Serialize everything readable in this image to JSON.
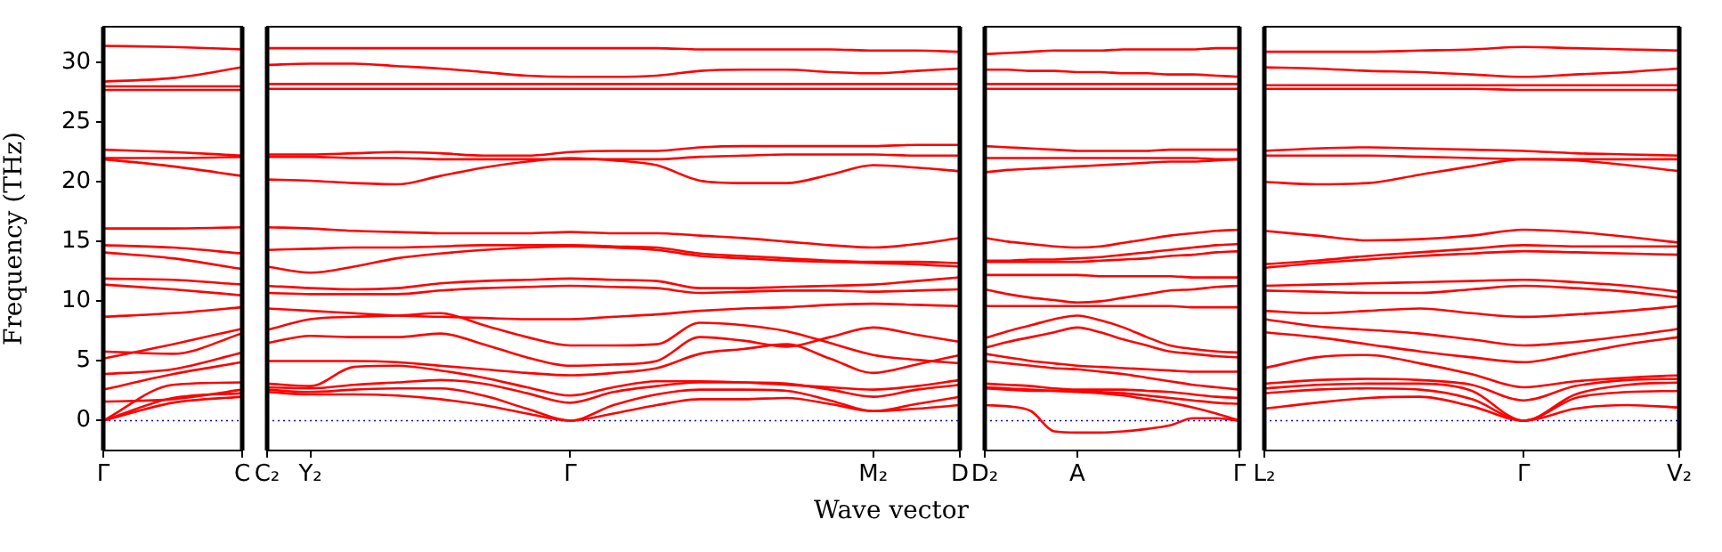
{
  "chart_data": [
    {
      "type": "line",
      "ylabel": "Frequency (THz)",
      "marker": "none",
      "categories": [
        "Γ",
        null,
        "C"
      ],
      "ylim": [
        -2.5,
        33
      ],
      "yticks": [
        0,
        5,
        10,
        15,
        20,
        25,
        30
      ],
      "ref_lines": [
        {
          "axis": "y",
          "value": 0,
          "color": "#0000ff",
          "line_style": "dotted"
        }
      ],
      "series": [
        {
          "color": "#ff0000",
          "values": [
            31.4,
            31.3,
            31.1
          ]
        },
        {
          "color": "#ff0000",
          "values": [
            28.4,
            28.7,
            29.6
          ]
        },
        {
          "color": "#ff0000",
          "values": [
            28.0,
            28.0,
            28.0
          ]
        },
        {
          "color": "#ff0000",
          "values": [
            27.7,
            27.7,
            27.7
          ]
        },
        {
          "color": "#ff0000",
          "values": [
            22.7,
            22.5,
            22.2
          ]
        },
        {
          "color": "#ff0000",
          "values": [
            22.0,
            22.0,
            22.1
          ]
        },
        {
          "color": "#ff0000",
          "values": [
            21.9,
            21.3,
            20.5
          ]
        },
        {
          "color": "#ff0000",
          "values": [
            16.1,
            16.1,
            16.2
          ]
        },
        {
          "color": "#ff0000",
          "values": [
            14.7,
            14.5,
            14.0
          ]
        },
        {
          "color": "#ff0000",
          "values": [
            14.1,
            13.6,
            12.7
          ]
        },
        {
          "color": "#ff0000",
          "values": [
            11.9,
            11.8,
            11.4
          ]
        },
        {
          "color": "#ff0000",
          "values": [
            11.4,
            11.0,
            10.5
          ]
        },
        {
          "color": "#ff0000",
          "values": [
            8.7,
            9.0,
            9.5
          ]
        },
        {
          "color": "#ff0000",
          "values": [
            5.8,
            5.6,
            7.3
          ]
        },
        {
          "color": "#ff0000",
          "values": [
            5.2,
            6.4,
            7.7
          ]
        },
        {
          "color": "#ff0000",
          "values": [
            3.9,
            4.3,
            5.7
          ]
        },
        {
          "color": "#ff0000",
          "values": [
            2.6,
            3.9,
            4.9
          ]
        },
        {
          "color": "#ff0000",
          "values": [
            1.6,
            1.8,
            2.6
          ]
        },
        {
          "color": "#ff0000",
          "values": [
            0,
            3.0,
            3.2
          ]
        },
        {
          "color": "#ff0000",
          "values": [
            0,
            1.9,
            2.3
          ]
        },
        {
          "color": "#ff0000",
          "values": [
            0,
            1.5,
            2.0
          ]
        }
      ]
    },
    {
      "type": "line",
      "xlabel": "Wave vector",
      "marker": "none",
      "tick_labels": "x",
      "categories": [
        "C₂",
        "Y₂",
        null,
        null,
        null,
        null,
        null,
        "Γ",
        null,
        null,
        null,
        null,
        null,
        null,
        "M₂",
        null,
        "D"
      ],
      "ylim": [
        -2.5,
        33
      ],
      "yticks": [
        0,
        5,
        10,
        15,
        20,
        25,
        30
      ],
      "ref_lines": [
        {
          "axis": "y",
          "value": 0,
          "color": "#0000ff",
          "line_style": "dotted"
        }
      ],
      "series": [
        {
          "color": "#ff0000",
          "values": [
            31.2,
            31.2,
            31.2,
            31.2,
            31.2,
            31.2,
            31.2,
            31.2,
            31.2,
            31.2,
            31.1,
            31.1,
            31.1,
            31.1,
            31.0,
            31.0,
            30.9
          ]
        },
        {
          "color": "#ff0000",
          "values": [
            29.8,
            29.9,
            29.9,
            29.7,
            29.5,
            29.2,
            28.9,
            28.8,
            28.8,
            28.9,
            29.3,
            29.4,
            29.4,
            29.2,
            29.1,
            29.3,
            29.5
          ]
        },
        {
          "color": "#ff0000",
          "values": [
            28.2,
            28.2,
            28.2,
            28.2,
            28.2,
            28.2,
            28.2,
            28.2,
            28.2,
            28.2,
            28.2,
            28.2,
            28.2,
            28.2,
            28.2,
            28.2,
            28.2
          ]
        },
        {
          "color": "#ff0000",
          "values": [
            27.8,
            27.8,
            27.8,
            27.8,
            27.8,
            27.8,
            27.8,
            27.8,
            27.8,
            27.8,
            27.8,
            27.8,
            27.8,
            27.8,
            27.8,
            27.8,
            27.8
          ]
        },
        {
          "color": "#ff0000",
          "values": [
            22.3,
            22.3,
            22.4,
            22.5,
            22.4,
            22.2,
            22.2,
            22.5,
            22.6,
            22.6,
            22.9,
            23.0,
            23.0,
            23.0,
            23.0,
            23.1,
            23.1
          ]
        },
        {
          "color": "#ff0000",
          "values": [
            22.1,
            22.1,
            22.0,
            22.0,
            21.9,
            21.9,
            21.9,
            21.9,
            21.9,
            21.9,
            22.1,
            22.2,
            22.3,
            22.3,
            22.3,
            22.2,
            22.2
          ]
        },
        {
          "color": "#ff0000",
          "values": [
            20.2,
            20.1,
            19.9,
            19.8,
            20.5,
            21.2,
            21.7,
            22.0,
            21.8,
            21.4,
            20.1,
            19.9,
            19.9,
            20.6,
            21.4,
            21.2,
            20.9
          ]
        },
        {
          "color": "#ff0000",
          "values": [
            16.2,
            16.1,
            15.9,
            15.8,
            15.7,
            15.7,
            15.7,
            15.8,
            15.7,
            15.7,
            15.5,
            15.3,
            15.0,
            14.7,
            14.5,
            14.8,
            15.3
          ]
        },
        {
          "color": "#ff0000",
          "values": [
            14.3,
            14.4,
            14.5,
            14.5,
            14.6,
            14.7,
            14.7,
            14.7,
            14.6,
            14.5,
            14.0,
            13.8,
            13.6,
            13.4,
            13.3,
            13.3,
            13.2
          ]
        },
        {
          "color": "#ff0000",
          "values": [
            12.9,
            12.4,
            12.9,
            13.6,
            14.0,
            14.3,
            14.5,
            14.6,
            14.5,
            14.3,
            13.8,
            13.6,
            13.4,
            13.3,
            13.2,
            13.1,
            12.9
          ]
        },
        {
          "color": "#ff0000",
          "values": [
            11.3,
            11.1,
            11.0,
            11.1,
            11.5,
            11.7,
            11.8,
            11.9,
            11.8,
            11.7,
            11.1,
            11.1,
            11.2,
            11.3,
            11.4,
            11.7,
            12.0
          ]
        },
        {
          "color": "#ff0000",
          "values": [
            10.7,
            10.6,
            10.6,
            10.6,
            10.9,
            11.1,
            11.2,
            11.3,
            11.2,
            11.1,
            10.7,
            10.8,
            10.9,
            10.9,
            10.8,
            10.9,
            11.0
          ]
        },
        {
          "color": "#ff0000",
          "values": [
            9.4,
            9.2,
            9.0,
            8.8,
            8.7,
            8.6,
            8.5,
            8.5,
            8.7,
            8.9,
            9.2,
            9.4,
            9.5,
            9.7,
            9.8,
            9.7,
            9.6
          ]
        },
        {
          "color": "#ff0000",
          "values": [
            7.6,
            8.5,
            8.7,
            8.8,
            9.0,
            8.0,
            7.0,
            6.3,
            6.3,
            6.4,
            8.2,
            8.0,
            7.5,
            6.5,
            5.5,
            5.1,
            4.8
          ]
        },
        {
          "color": "#ff0000",
          "values": [
            6.5,
            7.1,
            7.0,
            7.0,
            7.3,
            6.4,
            5.3,
            4.6,
            4.7,
            5.0,
            7.0,
            6.7,
            6.2,
            7.0,
            7.8,
            7.2,
            6.6
          ]
        },
        {
          "color": "#ff0000",
          "values": [
            5.0,
            5.0,
            5.0,
            4.9,
            4.6,
            4.3,
            4.0,
            3.8,
            4.0,
            4.4,
            5.6,
            6.0,
            6.4,
            5.2,
            4.0,
            4.7,
            5.5
          ]
        },
        {
          "color": "#ff0000",
          "values": [
            3.1,
            2.9,
            4.5,
            4.6,
            4.2,
            3.6,
            2.8,
            2.1,
            2.8,
            3.3,
            3.3,
            3.2,
            3.0,
            2.8,
            2.6,
            2.9,
            3.4
          ]
        },
        {
          "color": "#ff0000",
          "values": [
            2.8,
            2.7,
            3.0,
            3.2,
            3.4,
            3.1,
            2.3,
            1.5,
            2.4,
            2.9,
            3.2,
            3.2,
            3.1,
            2.6,
            2.0,
            2.6,
            3.0
          ]
        },
        {
          "color": "#ff0000",
          "values": [
            2.6,
            2.4,
            2.6,
            2.7,
            2.7,
            2.1,
            1.0,
            0,
            1.3,
            2.2,
            2.6,
            2.6,
            2.5,
            1.7,
            0.8,
            1.4,
            2.0
          ]
        },
        {
          "color": "#ff0000",
          "values": [
            2.4,
            2.2,
            2.2,
            2.1,
            1.8,
            1.3,
            0.6,
            0,
            0.6,
            1.3,
            1.8,
            1.8,
            1.9,
            1.4,
            0.8,
            1.0,
            1.3
          ]
        }
      ]
    },
    {
      "type": "line",
      "marker": "none",
      "tick_labels": "x",
      "categories": [
        "D₂",
        null,
        null,
        null,
        "A",
        null,
        null,
        null,
        null,
        null,
        null,
        "Γ"
      ],
      "ylim": [
        -2.5,
        33
      ],
      "yticks": [
        0,
        5,
        10,
        15,
        20,
        25,
        30
      ],
      "ref_lines": [
        {
          "axis": "y",
          "value": 0,
          "color": "#0000ff",
          "line_style": "dotted"
        }
      ],
      "series": [
        {
          "color": "#ff0000",
          "values": [
            30.7,
            30.8,
            30.9,
            31.0,
            31.0,
            31.0,
            31.1,
            31.1,
            31.1,
            31.1,
            31.2,
            31.2
          ]
        },
        {
          "color": "#ff0000",
          "values": [
            29.4,
            29.4,
            29.3,
            29.3,
            29.2,
            29.2,
            29.1,
            29.1,
            29.0,
            29.0,
            28.9,
            28.8
          ]
        },
        {
          "color": "#ff0000",
          "values": [
            28.2,
            28.2,
            28.2,
            28.2,
            28.2,
            28.2,
            28.2,
            28.2,
            28.2,
            28.2,
            28.2,
            28.2
          ]
        },
        {
          "color": "#ff0000",
          "values": [
            27.8,
            27.8,
            27.8,
            27.8,
            27.8,
            27.8,
            27.8,
            27.8,
            27.8,
            27.8,
            27.8,
            27.8
          ]
        },
        {
          "color": "#ff0000",
          "values": [
            23.0,
            22.9,
            22.8,
            22.7,
            22.6,
            22.6,
            22.6,
            22.6,
            22.7,
            22.7,
            22.7,
            22.7
          ]
        },
        {
          "color": "#ff0000",
          "values": [
            22.0,
            22.0,
            22.0,
            22.0,
            22.0,
            22.0,
            22.0,
            22.0,
            22.0,
            22.0,
            21.9,
            21.9
          ]
        },
        {
          "color": "#ff0000",
          "values": [
            20.8,
            21.0,
            21.1,
            21.2,
            21.3,
            21.4,
            21.5,
            21.6,
            21.7,
            21.7,
            21.8,
            21.9
          ]
        },
        {
          "color": "#ff0000",
          "values": [
            15.3,
            15.0,
            14.8,
            14.6,
            14.5,
            14.6,
            14.9,
            15.2,
            15.5,
            15.7,
            15.9,
            16.0
          ]
        },
        {
          "color": "#ff0000",
          "values": [
            13.4,
            13.4,
            13.5,
            13.5,
            13.6,
            13.7,
            13.9,
            14.1,
            14.3,
            14.5,
            14.7,
            14.8
          ]
        },
        {
          "color": "#ff0000",
          "values": [
            13.3,
            13.3,
            13.3,
            13.3,
            13.3,
            13.4,
            13.5,
            13.6,
            13.8,
            13.9,
            14.1,
            14.2
          ]
        },
        {
          "color": "#ff0000",
          "values": [
            12.2,
            12.2,
            12.2,
            12.2,
            12.2,
            12.1,
            12.1,
            12.1,
            12.1,
            12.0,
            12.0,
            12.0
          ]
        },
        {
          "color": "#ff0000",
          "values": [
            11.0,
            10.6,
            10.3,
            10.1,
            9.9,
            10.0,
            10.3,
            10.6,
            10.9,
            11.0,
            11.2,
            11.3
          ]
        },
        {
          "color": "#ff0000",
          "values": [
            9.6,
            9.6,
            9.6,
            9.6,
            9.6,
            9.6,
            9.6,
            9.6,
            9.6,
            9.5,
            9.5,
            9.5
          ]
        },
        {
          "color": "#ff0000",
          "values": [
            6.9,
            7.5,
            8.0,
            8.5,
            8.8,
            8.4,
            7.8,
            7.0,
            6.3,
            6.0,
            5.8,
            5.7
          ]
        },
        {
          "color": "#ff0000",
          "values": [
            6.1,
            6.6,
            7.0,
            7.4,
            7.8,
            7.4,
            6.8,
            6.3,
            5.8,
            5.6,
            5.4,
            5.3
          ]
        },
        {
          "color": "#ff0000",
          "values": [
            5.6,
            5.3,
            5.0,
            4.8,
            4.6,
            4.5,
            4.4,
            4.3,
            4.2,
            4.1,
            4.1,
            4.1
          ]
        },
        {
          "color": "#ff0000",
          "values": [
            5.0,
            4.8,
            4.6,
            4.4,
            4.3,
            4.1,
            3.9,
            3.6,
            3.3,
            3.0,
            2.8,
            2.6
          ]
        },
        {
          "color": "#ff0000",
          "values": [
            3.1,
            3.0,
            2.9,
            2.7,
            2.6,
            2.6,
            2.6,
            2.5,
            2.4,
            2.2,
            2.0,
            1.9
          ]
        },
        {
          "color": "#ff0000",
          "values": [
            2.8,
            2.7,
            2.6,
            2.5,
            2.4,
            2.3,
            2.1,
            1.8,
            1.5,
            1.1,
            0.6,
            0
          ]
        },
        {
          "color": "#ff0000",
          "values": [
            2.7,
            2.6,
            2.5,
            2.5,
            2.5,
            2.4,
            2.3,
            2.1,
            1.9,
            1.7,
            1.5,
            1.4
          ]
        },
        {
          "color": "#ff0000",
          "values": [
            1.3,
            1.2,
            0.8,
            -0.9,
            -1.0,
            -1.0,
            -0.9,
            -0.7,
            -0.4,
            0.2,
            0.2,
            0
          ]
        }
      ]
    },
    {
      "type": "line",
      "marker": "none",
      "tick_labels": "x",
      "categories": [
        "L₂",
        null,
        null,
        null,
        null,
        "Γ",
        null,
        null,
        "V₂"
      ],
      "ylim": [
        -2.5,
        33
      ],
      "yticks": [
        0,
        5,
        10,
        15,
        20,
        25,
        30
      ],
      "ref_lines": [
        {
          "axis": "y",
          "value": 0,
          "color": "#0000ff",
          "line_style": "dotted"
        }
      ],
      "series": [
        {
          "color": "#ff0000",
          "values": [
            30.9,
            30.9,
            30.9,
            31.0,
            31.1,
            31.3,
            31.2,
            31.1,
            31.0
          ]
        },
        {
          "color": "#ff0000",
          "values": [
            29.6,
            29.5,
            29.3,
            29.2,
            29.0,
            28.8,
            29.0,
            29.2,
            29.5
          ]
        },
        {
          "color": "#ff0000",
          "values": [
            28.1,
            28.1,
            28.1,
            28.1,
            28.1,
            28.1,
            28.1,
            28.1,
            28.1
          ]
        },
        {
          "color": "#ff0000",
          "values": [
            27.8,
            27.8,
            27.8,
            27.8,
            27.8,
            27.7,
            27.7,
            27.7,
            27.7
          ]
        },
        {
          "color": "#ff0000",
          "values": [
            22.6,
            22.8,
            22.9,
            22.8,
            22.7,
            22.6,
            22.4,
            22.3,
            22.2
          ]
        },
        {
          "color": "#ff0000",
          "values": [
            22.2,
            22.2,
            22.2,
            22.1,
            22.0,
            21.9,
            21.9,
            21.9,
            21.9
          ]
        },
        {
          "color": "#ff0000",
          "values": [
            20.0,
            19.8,
            19.9,
            20.6,
            21.3,
            21.9,
            21.8,
            21.4,
            20.9
          ]
        },
        {
          "color": "#ff0000",
          "values": [
            15.9,
            15.5,
            15.1,
            15.2,
            15.5,
            16.0,
            15.8,
            15.4,
            14.9
          ]
        },
        {
          "color": "#ff0000",
          "values": [
            13.1,
            13.4,
            13.8,
            14.1,
            14.4,
            14.7,
            14.6,
            14.6,
            14.6
          ]
        },
        {
          "color": "#ff0000",
          "values": [
            12.8,
            13.2,
            13.5,
            13.8,
            14.0,
            14.2,
            14.1,
            14.0,
            13.9
          ]
        },
        {
          "color": "#ff0000",
          "values": [
            11.3,
            11.4,
            11.5,
            11.6,
            11.7,
            11.8,
            11.6,
            11.3,
            10.8
          ]
        },
        {
          "color": "#ff0000",
          "values": [
            10.9,
            10.8,
            10.7,
            10.7,
            11.0,
            11.3,
            11.1,
            10.8,
            10.3
          ]
        },
        {
          "color": "#ff0000",
          "values": [
            9.2,
            9.0,
            9.2,
            9.4,
            9.0,
            8.7,
            8.9,
            9.2,
            9.6
          ]
        },
        {
          "color": "#ff0000",
          "values": [
            8.5,
            7.9,
            7.6,
            7.3,
            6.8,
            6.3,
            6.6,
            7.1,
            7.7
          ]
        },
        {
          "color": "#ff0000",
          "values": [
            7.4,
            7.0,
            6.4,
            5.8,
            5.3,
            4.9,
            5.6,
            6.4,
            7.0
          ]
        },
        {
          "color": "#ff0000",
          "values": [
            4.4,
            5.3,
            5.5,
            4.8,
            3.9,
            2.8,
            3.3,
            3.6,
            3.8
          ]
        },
        {
          "color": "#ff0000",
          "values": [
            3.1,
            3.4,
            3.5,
            3.4,
            3.0,
            1.7,
            2.9,
            3.4,
            3.5
          ]
        },
        {
          "color": "#ff0000",
          "values": [
            2.7,
            3.0,
            3.1,
            3.1,
            2.5,
            0,
            2.2,
            3.0,
            3.2
          ]
        },
        {
          "color": "#ff0000",
          "values": [
            2.3,
            2.6,
            2.7,
            2.6,
            1.8,
            0,
            1.9,
            2.4,
            2.5
          ]
        },
        {
          "color": "#ff0000",
          "values": [
            1.0,
            1.5,
            1.9,
            2.0,
            1.2,
            0,
            1.0,
            1.3,
            1.1
          ]
        }
      ]
    }
  ]
}
